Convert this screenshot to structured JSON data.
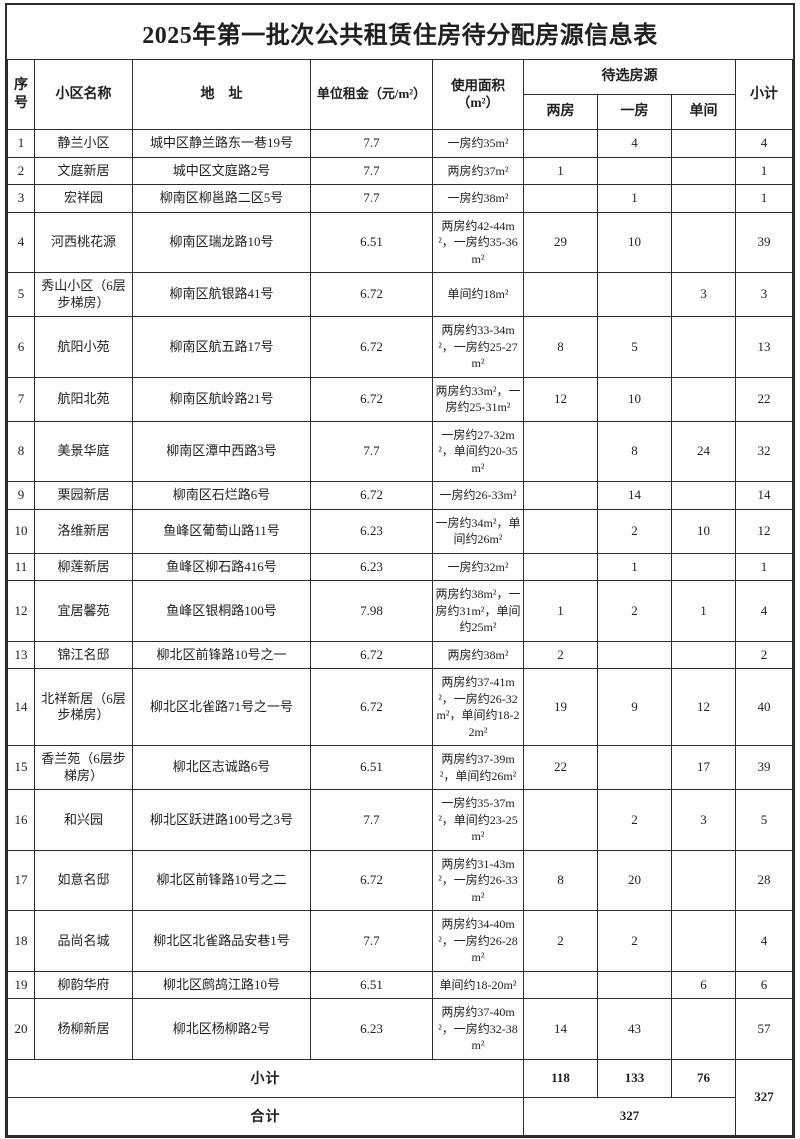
{
  "title": "2025年第一批次公共租赁住房待分配房源信息表",
  "header": {
    "seq": "序号",
    "community": "小区名称",
    "address": "地　址",
    "rent": "单位租金（元/m²）",
    "area": "使用面积（m²）",
    "pool_group": "待选房源",
    "two_room": "两房",
    "one_room": "一房",
    "single": "单间",
    "subtotal": "小计"
  },
  "rows": [
    {
      "seq": "1",
      "name": "静兰小区",
      "address": "城中区静兰路东一巷19号",
      "rent": "7.7",
      "area": "一房约35m²",
      "two": "",
      "one": "4",
      "single": "",
      "subtotal": "4"
    },
    {
      "seq": "2",
      "name": "文庭新居",
      "address": "城中区文庭路2号",
      "rent": "7.7",
      "area": "两房约37m²",
      "two": "1",
      "one": "",
      "single": "",
      "subtotal": "1"
    },
    {
      "seq": "3",
      "name": "宏祥园",
      "address": "柳南区柳邕路二区5号",
      "rent": "7.7",
      "area": "一房约38m²",
      "two": "",
      "one": "1",
      "single": "",
      "subtotal": "1"
    },
    {
      "seq": "4",
      "name": "河西桃花源",
      "address": "柳南区瑞龙路10号",
      "rent": "6.51",
      "area": "两房约42-44m²，一房约35-36m²",
      "two": "29",
      "one": "10",
      "single": "",
      "subtotal": "39"
    },
    {
      "seq": "5",
      "name": "秀山小区（6层步梯房）",
      "address": "柳南区航银路41号",
      "rent": "6.72",
      "area": "单间约18m²",
      "two": "",
      "one": "",
      "single": "3",
      "subtotal": "3"
    },
    {
      "seq": "6",
      "name": "航阳小苑",
      "address": "柳南区航五路17号",
      "rent": "6.72",
      "area": "两房约33-34m²，一房约25-27m²",
      "two": "8",
      "one": "5",
      "single": "",
      "subtotal": "13"
    },
    {
      "seq": "7",
      "name": "航阳北苑",
      "address": "柳南区航岭路21号",
      "rent": "6.72",
      "area": "两房约33m²，一房约25-31m²",
      "two": "12",
      "one": "10",
      "single": "",
      "subtotal": "22"
    },
    {
      "seq": "8",
      "name": "美景华庭",
      "address": "柳南区潭中西路3号",
      "rent": "7.7",
      "area": "一房约27-32m²，单间约20-35m²",
      "two": "",
      "one": "8",
      "single": "24",
      "subtotal": "32"
    },
    {
      "seq": "9",
      "name": "栗园新居",
      "address": "柳南区石烂路6号",
      "rent": "6.72",
      "area": "一房约26-33m²",
      "two": "",
      "one": "14",
      "single": "",
      "subtotal": "14"
    },
    {
      "seq": "10",
      "name": "洛维新居",
      "address": "鱼峰区葡萄山路11号",
      "rent": "6.23",
      "area": "一房约34m²，单间约26m²",
      "two": "",
      "one": "2",
      "single": "10",
      "subtotal": "12"
    },
    {
      "seq": "11",
      "name": "柳莲新居",
      "address": "鱼峰区柳石路416号",
      "rent": "6.23",
      "area": "一房约32m²",
      "two": "",
      "one": "1",
      "single": "",
      "subtotal": "1"
    },
    {
      "seq": "12",
      "name": "宜居馨苑",
      "address": "鱼峰区银桐路100号",
      "rent": "7.98",
      "area": "两房约38m²，一房约31m²，单间约25m²",
      "two": "1",
      "one": "2",
      "single": "1",
      "subtotal": "4"
    },
    {
      "seq": "13",
      "name": "锦江名邸",
      "address": "柳北区前锋路10号之一",
      "rent": "6.72",
      "area": "两房约38m²",
      "two": "2",
      "one": "",
      "single": "",
      "subtotal": "2"
    },
    {
      "seq": "14",
      "name": "北祥新居（6层步梯房）",
      "address": "柳北区北雀路71号之一号",
      "rent": "6.72",
      "area": "两房约37-41m²，一房约26-32m²，单间约18-22m²",
      "two": "19",
      "one": "9",
      "single": "12",
      "subtotal": "40"
    },
    {
      "seq": "15",
      "name": "香兰苑（6层步梯房）",
      "address": "柳北区志诚路6号",
      "rent": "6.51",
      "area": "两房约37-39m²，单间约26m²",
      "two": "22",
      "one": "",
      "single": "17",
      "subtotal": "39"
    },
    {
      "seq": "16",
      "name": "和兴园",
      "address": "柳北区跃进路100号之3号",
      "rent": "7.7",
      "area": "一房约35-37m²，单间约23-25m²",
      "two": "",
      "one": "2",
      "single": "3",
      "subtotal": "5"
    },
    {
      "seq": "17",
      "name": "如意名邸",
      "address": "柳北区前锋路10号之二",
      "rent": "6.72",
      "area": "两房约31-43m²，一房约26-33m²",
      "two": "8",
      "one": "20",
      "single": "",
      "subtotal": "28"
    },
    {
      "seq": "18",
      "name": "品尚名城",
      "address": "柳北区北雀路品安巷1号",
      "rent": "7.7",
      "area": "两房约34-40m²，一房约26-28m²",
      "two": "2",
      "one": "2",
      "single": "",
      "subtotal": "4"
    },
    {
      "seq": "19",
      "name": "柳韵华府",
      "address": "柳北区鹧鸪江路10号",
      "rent": "6.51",
      "area": "单间约18-20m²",
      "two": "",
      "one": "",
      "single": "6",
      "subtotal": "6"
    },
    {
      "seq": "20",
      "name": "杨柳新居",
      "address": "柳北区杨柳路2号",
      "rent": "6.23",
      "area": "两房约37-40m²，一房约32-38m²",
      "two": "14",
      "one": "43",
      "single": "",
      "subtotal": "57"
    }
  ],
  "footer": {
    "subtotal_label": "小计",
    "total_label": "合计",
    "two_room_subtotal": "118",
    "one_room_subtotal": "133",
    "single_subtotal": "76",
    "right_column_total": "327",
    "grand_total": "327"
  }
}
